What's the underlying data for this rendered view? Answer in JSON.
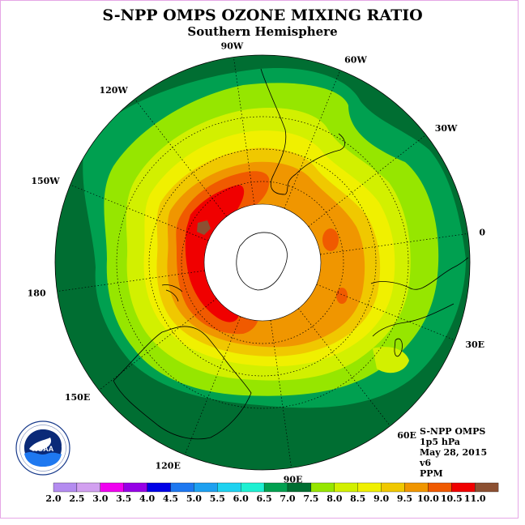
{
  "title": "S-NPP OMPS OZONE MIXING RATIO",
  "subtitle": "Southern Hemisphere",
  "longitude_labels": [
    "90W",
    "60W",
    "30W",
    "0",
    "30E",
    "60E",
    "90E",
    "120E",
    "150E",
    "180",
    "150W",
    "120W"
  ],
  "info": {
    "product": "S-NPP OMPS",
    "level": "1p5 hPa",
    "date": "May 28, 2015",
    "version": "v6",
    "units": "PPM"
  },
  "logo": {
    "text": "NOAA",
    "ring_text": "NATIONAL OCEANIC AND ATMOSPHERIC ADMINISTRATION · U.S. DEPARTMENT OF COMMERCE"
  },
  "colorbar": {
    "ticks": [
      "2.0",
      "2.5",
      "3.0",
      "3.5",
      "4.0",
      "4.5",
      "5.0",
      "5.5",
      "6.0",
      "6.5",
      "7.0",
      "7.5",
      "8.0",
      "8.5",
      "9.0",
      "9.5",
      "10.0",
      "10.5",
      "11.0"
    ],
    "colors": [
      "#b48cf0",
      "#d2a0f0",
      "#f000f0",
      "#9600e6",
      "#0000e6",
      "#1e78f0",
      "#1ea0f0",
      "#1ed2f0",
      "#1ef0d2",
      "#00a050",
      "#006e32",
      "#96e600",
      "#d2f000",
      "#f0f000",
      "#f0c800",
      "#f09600",
      "#f05a00",
      "#f00000",
      "#8c5032"
    ]
  },
  "colors": {
    "outer_ring": "#006e32",
    "dark_green": "#00a050",
    "light_green": "#96e600",
    "yellow_green": "#d2f000",
    "yellow": "#f0f000",
    "gold": "#f0c800",
    "orange": "#f09600",
    "dark_orange": "#f05a00",
    "red": "#f00000",
    "brown": "#8c5032"
  }
}
